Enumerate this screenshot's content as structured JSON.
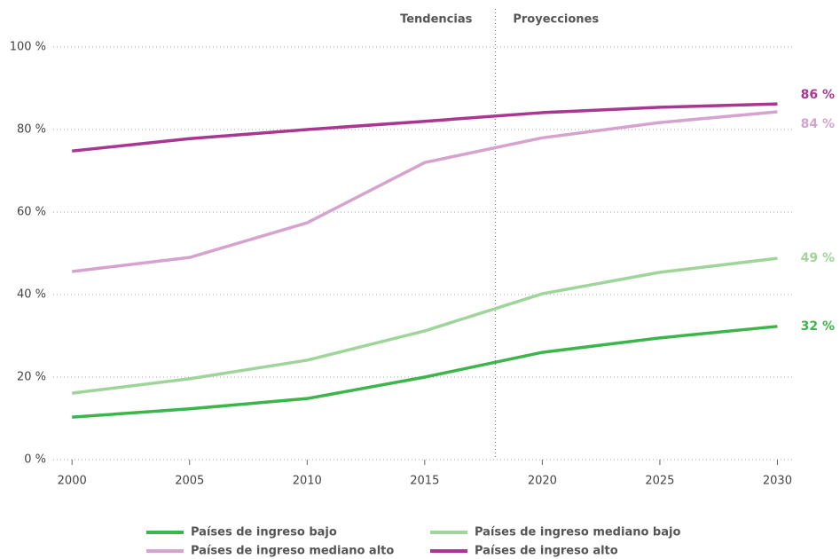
{
  "chart_data": {
    "type": "line",
    "x": [
      2000,
      2005,
      2010,
      2015,
      2020,
      2025,
      2030
    ],
    "xlim": [
      1999.2,
      2030.7
    ],
    "xticks": [
      2000,
      2005,
      2010,
      2015,
      2020,
      2025,
      2030
    ],
    "ylim": [
      0,
      100
    ],
    "yticks": [
      {
        "value": 0,
        "label": "0 %"
      },
      {
        "value": 20,
        "label": "20 %"
      },
      {
        "value": 40,
        "label": "40 %"
      },
      {
        "value": 60,
        "label": "60 %"
      },
      {
        "value": 80,
        "label": "80 %"
      },
      {
        "value": 100,
        "label": "100 %"
      }
    ],
    "grid": true,
    "divider": {
      "x": 2018,
      "left_label": "Tendencias",
      "right_label": "Proyecciones"
    },
    "series": [
      {
        "name": "Países de ingreso bajo",
        "color": "#3cb54a",
        "values": [
          10.3,
          12.3,
          14.8,
          20,
          26,
          29.5,
          32.3
        ],
        "end_label": "32 %"
      },
      {
        "name": "Países de ingreso mediano bajo",
        "color": "#9fd49a",
        "values": [
          16.1,
          19.6,
          24.1,
          31.2,
          40.2,
          45.4,
          48.8
        ],
        "end_label": "49 %"
      },
      {
        "name": "Países de ingreso mediano alto",
        "color": "#d6a3cf",
        "values": [
          45.6,
          49,
          57.4,
          72,
          78,
          81.7,
          84.3
        ],
        "end_label": "84 %"
      },
      {
        "name": "Países de ingreso alto",
        "color": "#a93690",
        "values": [
          74.8,
          77.8,
          80,
          82,
          84.1,
          85.4,
          86.2
        ],
        "end_label": "86 %"
      }
    ]
  }
}
